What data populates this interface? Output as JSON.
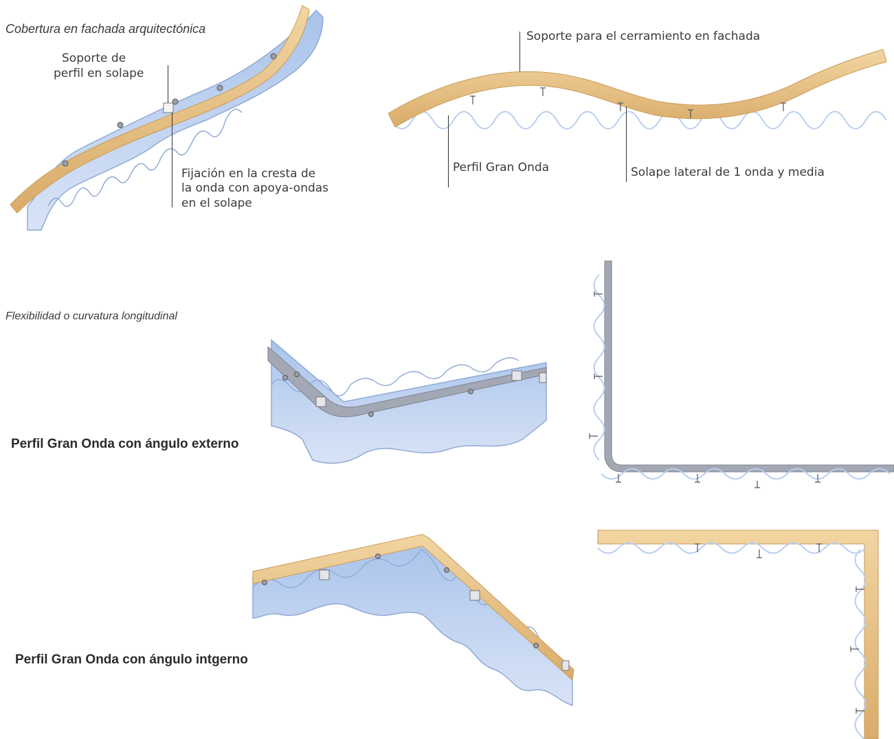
{
  "sections": {
    "curved_title": "Cobertura en fachada arquitectónica",
    "flex_title": "Flexibilidad o curvatura longitudinal",
    "external_title": "Perfil Gran Onda con ángulo externo",
    "internal_title": "Perfil Gran Onda con ángulo intgerno"
  },
  "labels": {
    "soporte_solape_1": "Soporte de",
    "soporte_solape_2": "perfil en solape",
    "fijacion_1": "Fijación en la cresta de",
    "fijacion_2": "la onda con apoya-ondas",
    "fijacion_3": "en el solape",
    "soporte_fachada": "Soporte para el cerramiento en fachada",
    "perfil_gran_onda": "Perfil Gran Onda",
    "solape_lateral": "Solape lateral de 1 onda y media"
  },
  "colors": {
    "wood": "#e9c48a",
    "wood_edge": "#c99a55",
    "panel": "#b9cff0",
    "panel_edge": "#8fa9d4",
    "steel": "#a3a8b4"
  }
}
